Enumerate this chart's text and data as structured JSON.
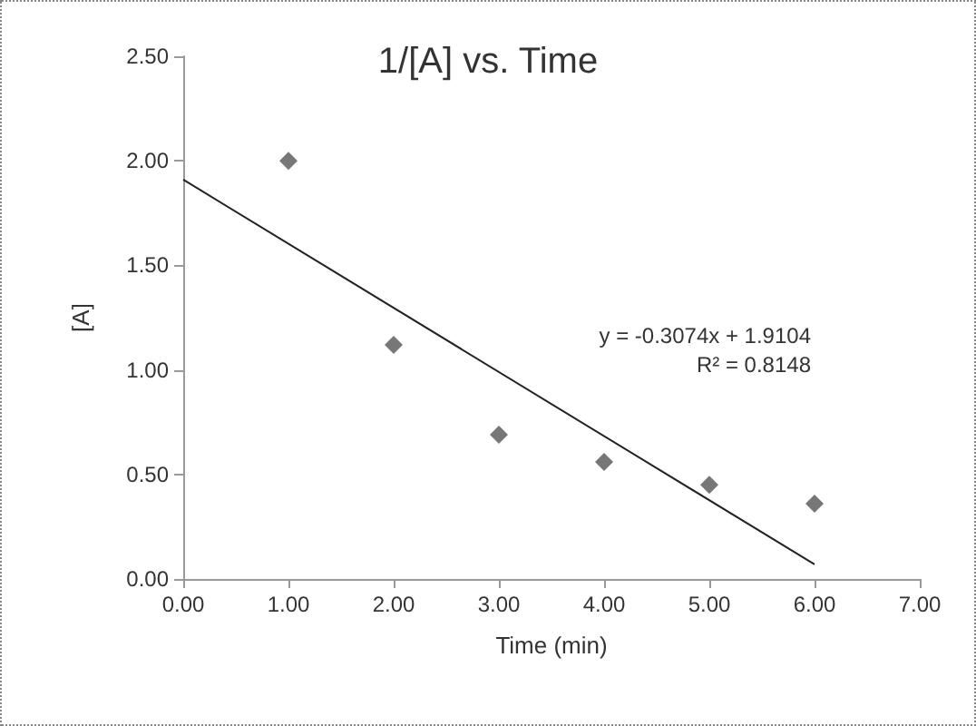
{
  "chart_data": {
    "type": "scatter",
    "title": "1/[A] vs. Time",
    "xlabel": "Time (min)",
    "ylabel": "[A]",
    "xlim": [
      0,
      7
    ],
    "xticks": [
      {
        "value": 0,
        "label": "0.00"
      },
      {
        "value": 1,
        "label": "1.00"
      },
      {
        "value": 2,
        "label": "2.00"
      },
      {
        "value": 3,
        "label": "3.00"
      },
      {
        "value": 4,
        "label": "4.00"
      },
      {
        "value": 5,
        "label": "5.00"
      },
      {
        "value": 6,
        "label": "6.00"
      },
      {
        "value": 7,
        "label": "7.00"
      }
    ],
    "ylim": [
      0,
      2.5
    ],
    "yticks": [
      {
        "value": 0,
        "label": "0.00"
      },
      {
        "value": 0.5,
        "label": "0.50"
      },
      {
        "value": 1,
        "label": "1.00"
      },
      {
        "value": 1.5,
        "label": "1.50"
      },
      {
        "value": 2,
        "label": "2.00"
      },
      {
        "value": 2.5,
        "label": "2.50"
      }
    ],
    "grid": false,
    "series": [
      {
        "marker": "diamond",
        "color": "#555555",
        "x": [
          1,
          2,
          3,
          4,
          5,
          6
        ],
        "values": [
          2.0,
          1.12,
          0.69,
          0.56,
          0.45,
          0.36
        ]
      },
      {
        "type": "line",
        "marker": "none",
        "color": "#222222",
        "x": [
          0,
          6
        ],
        "values": [
          1.91,
          0.07
        ]
      }
    ],
    "annotations": [
      "y = -0.3074x + 1.9104",
      "R² = 0.8148"
    ]
  }
}
